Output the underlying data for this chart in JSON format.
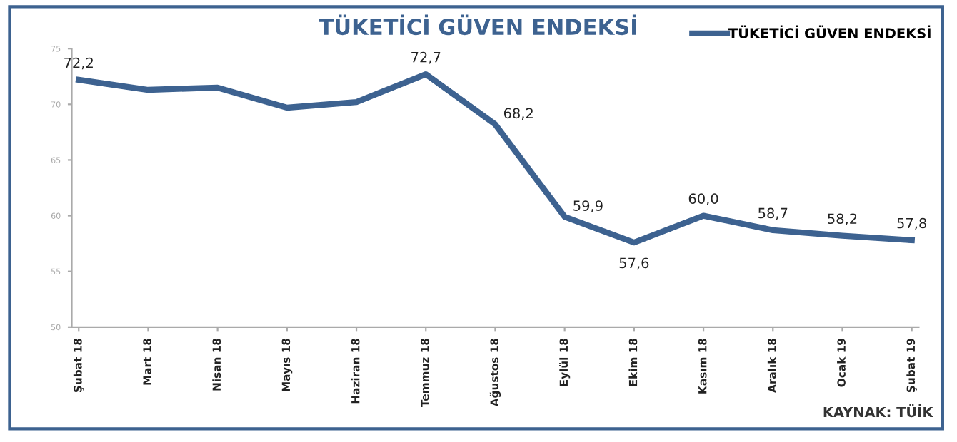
{
  "chart_data": {
    "type": "line",
    "title": "TÜKETİCİ GÜVEN ENDEKSİ",
    "categories": [
      "Şubat 18",
      "Mart 18",
      "Nisan 18",
      "Mayıs 18",
      "Haziran 18",
      "Temmuz 18",
      "Ağustos 18",
      "Eylül 18",
      "Ekim 18",
      "Kasım 18",
      "Aralık 18",
      "Ocak 19",
      "Şubat 19"
    ],
    "series": [
      {
        "name": "TÜKETİCİ GÜVEN ENDEKSİ",
        "color": "#3d6290",
        "values": [
          72.2,
          71.3,
          71.5,
          69.7,
          70.2,
          72.7,
          68.2,
          59.9,
          57.6,
          60.0,
          58.7,
          58.2,
          57.8
        ],
        "value_labels": [
          "72,2",
          null,
          null,
          null,
          null,
          "72,7",
          "68,2",
          "59,9",
          "57,6",
          "60,0",
          "58,7",
          "58,2",
          "57,8"
        ]
      }
    ],
    "ylim": [
      50,
      75
    ],
    "yticks": [
      50,
      55,
      60,
      65,
      70,
      75
    ],
    "grid": false,
    "legend": "top right",
    "marker": "none",
    "line_style": "solid",
    "annotations": [
      "KAYNAK: TÜİK"
    ]
  }
}
